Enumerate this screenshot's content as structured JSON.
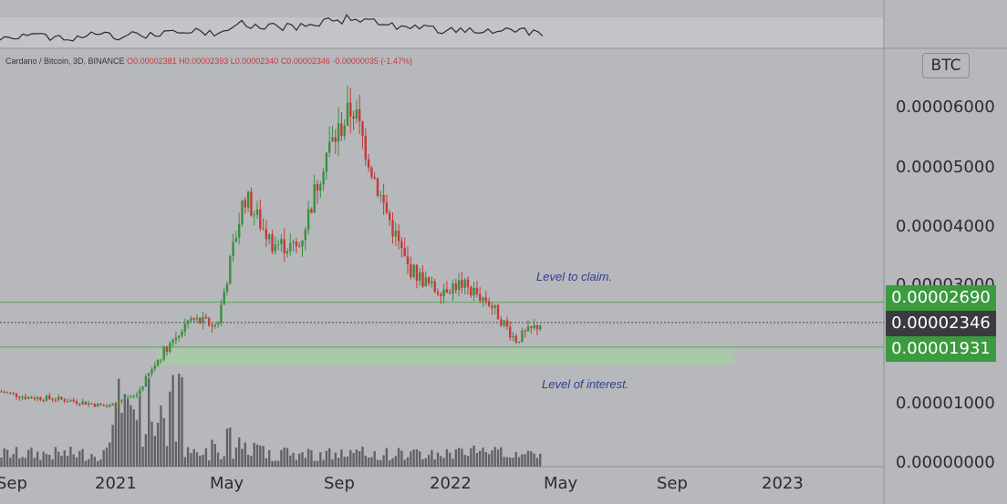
{
  "header": {
    "symbol_text": "Cardano / Bitcoin, 3D, BINANCE",
    "open": "O0.00002381",
    "high": "H0.00002393",
    "low": "L0.00002340",
    "close": "C0.00002346",
    "change": "-0.00000035 (-1.47%)"
  },
  "price_axis": {
    "unit": "BTC",
    "labels": [
      "0.00006000",
      "0.00005000",
      "0.00004000",
      "0.00003000",
      "0.00001000",
      "0.00000000"
    ]
  },
  "badges": {
    "upper_level": "0.00002690",
    "last_price": "0.00002346",
    "lower_level": "0.00001931"
  },
  "time_axis": {
    "labels": [
      "Sep",
      "2021",
      "May",
      "Sep",
      "2022",
      "May",
      "Sep",
      "2023"
    ]
  },
  "annotations": {
    "level_to_claim": "Level to claim.",
    "level_of_interest": "Level of interest."
  },
  "colors": {
    "background": "#b7b8bc",
    "up": "#3a8f3e",
    "down": "#c53a37",
    "level_line": "#5aa55e",
    "zone_fill": "#a7c9a6",
    "badge_green": "#3c9a3f",
    "badge_dark": "#3a3b40",
    "volume": "#46474c"
  },
  "chart_data": {
    "type": "candlestick",
    "title": "Cardano / Bitcoin, 3D, BINANCE",
    "x": [
      "2020-08",
      "2020-09",
      "2020-10",
      "2020-11",
      "2020-12",
      "2021-01",
      "2021-02",
      "2021-03",
      "2021-04",
      "2021-05",
      "2021-06",
      "2021-07",
      "2021-08",
      "2021-09",
      "2021-10",
      "2021-11",
      "2021-12",
      "2022-01",
      "2022-02",
      "2022-03",
      "2022-04"
    ],
    "series": [
      {
        "values": [
          1.18e-05,
          1.08e-05,
          1.06e-05,
          1e-05,
          9.2e-06,
          1.1e-05,
          1.85e-05,
          2.4e-05,
          2.3e-05,
          4.5e-05,
          3.7e-05,
          3.6e-05,
          5.2e-05,
          6e-05,
          4.5e-05,
          3.3e-05,
          2.9e-05,
          3e-05,
          2.7e-05,
          2.05e-05,
          2.35e-05
        ]
      }
    ],
    "levels": [
      {
        "name": "Level to claim.",
        "value": 2.69e-05
      },
      {
        "name": "Level of interest.",
        "value": 1.931e-05
      }
    ],
    "zone": [
      1.62e-05,
      1.9e-05
    ],
    "last": 2.346e-05,
    "ylim": [
      0,
      6.7e-05
    ],
    "grid": false
  }
}
